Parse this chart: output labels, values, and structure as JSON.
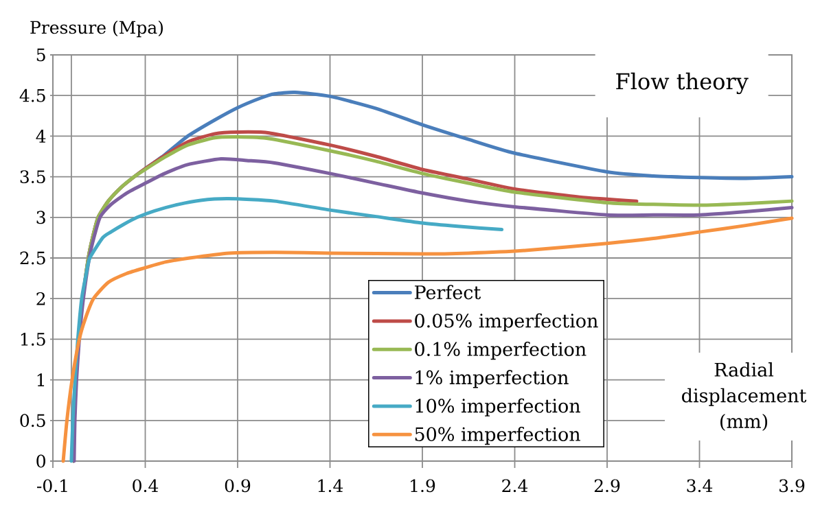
{
  "chart_data": {
    "type": "line",
    "title": "Flow theory",
    "xlabel": "Radial displacement (mm)",
    "ylabel": "Pressure (Mpa)",
    "xlim": [
      -0.1,
      3.9
    ],
    "ylim": [
      0,
      5
    ],
    "xticks": [
      -0.1,
      0.4,
      0.9,
      1.4,
      1.9,
      2.4,
      2.9,
      3.4,
      3.9
    ],
    "yticks": [
      0,
      0.5,
      1,
      1.5,
      2,
      2.5,
      3,
      3.5,
      4,
      4.5,
      5
    ],
    "grid": true,
    "legend": "bottom",
    "line_style": "solid",
    "ref_lines": [
      {
        "axis": "x",
        "value": 0,
        "color": "#8c8c8c"
      }
    ],
    "series": [
      {
        "name": "Perfect",
        "color": "#4a7ebb",
        "x": [
          0.012,
          0.016,
          0.025,
          0.04,
          0.062,
          0.092,
          0.115,
          0.145,
          0.2,
          0.27,
          0.34,
          0.4,
          0.505,
          0.63,
          0.777,
          0.9,
          1.026,
          1.1,
          1.21,
          1.4,
          1.65,
          1.9,
          2.15,
          2.4,
          2.9,
          3.15,
          3.4,
          3.65,
          3.9
        ],
        "values": [
          0,
          0.5,
          1,
          1.5,
          2,
          2.5,
          2.75,
          3.0,
          3.2,
          3.37,
          3.5,
          3.6,
          3.77,
          4.0,
          4.2,
          4.35,
          4.47,
          4.52,
          4.54,
          4.49,
          4.34,
          4.14,
          3.96,
          3.79,
          3.56,
          3.51,
          3.49,
          3.48,
          3.5
        ]
      },
      {
        "name": "0.05% imperfection",
        "color": "#be4b48",
        "x": [
          0.012,
          0.016,
          0.025,
          0.04,
          0.062,
          0.092,
          0.115,
          0.145,
          0.2,
          0.27,
          0.34,
          0.4,
          0.505,
          0.63,
          0.777,
          0.9,
          1.07,
          1.4,
          1.65,
          1.9,
          2.15,
          2.4,
          2.75,
          3.06
        ],
        "values": [
          0,
          0.5,
          1,
          1.5,
          2,
          2.5,
          2.75,
          3.0,
          3.2,
          3.37,
          3.5,
          3.6,
          3.76,
          3.93,
          4.03,
          4.05,
          4.04,
          3.89,
          3.75,
          3.59,
          3.47,
          3.35,
          3.25,
          3.2
        ]
      },
      {
        "name": "0.1% imperfection",
        "color": "#98b954",
        "x": [
          0.012,
          0.016,
          0.025,
          0.04,
          0.062,
          0.092,
          0.115,
          0.145,
          0.2,
          0.27,
          0.34,
          0.4,
          0.505,
          0.63,
          0.777,
          0.9,
          1.07,
          1.4,
          1.65,
          1.9,
          2.15,
          2.4,
          2.9,
          3.15,
          3.4,
          3.65,
          3.9
        ],
        "values": [
          0,
          0.5,
          1,
          1.5,
          2,
          2.5,
          2.75,
          3.0,
          3.2,
          3.37,
          3.5,
          3.59,
          3.74,
          3.89,
          3.98,
          3.99,
          3.97,
          3.82,
          3.69,
          3.54,
          3.42,
          3.31,
          3.18,
          3.16,
          3.15,
          3.17,
          3.2
        ]
      },
      {
        "name": "1% imperfection",
        "color": "#7d60a0",
        "x": [
          0.015,
          0.019,
          0.028,
          0.043,
          0.065,
          0.097,
          0.122,
          0.155,
          0.21,
          0.3,
          0.4,
          0.505,
          0.63,
          0.81,
          0.95,
          1.1,
          1.4,
          1.65,
          1.9,
          2.15,
          2.4,
          2.9,
          3.15,
          3.4,
          3.65,
          3.9
        ],
        "values": [
          0,
          0.5,
          1,
          1.5,
          2,
          2.5,
          2.75,
          3.0,
          3.15,
          3.3,
          3.42,
          3.54,
          3.65,
          3.72,
          3.7,
          3.67,
          3.54,
          3.42,
          3.3,
          3.2,
          3.13,
          3.03,
          3.03,
          3.03,
          3.07,
          3.12
        ]
      },
      {
        "name": "10% imperfection",
        "color": "#46aac5",
        "x": [
          0.0,
          0.008,
          0.02,
          0.035,
          0.056,
          0.08,
          0.1,
          0.17,
          0.214,
          0.28,
          0.356,
          0.45,
          0.58,
          0.7,
          0.85,
          1.1,
          1.4,
          1.65,
          1.9,
          2.09,
          2.33
        ],
        "values": [
          0,
          0.5,
          1,
          1.5,
          2,
          2.3,
          2.5,
          2.75,
          2.82,
          2.91,
          3.0,
          3.08,
          3.16,
          3.21,
          3.23,
          3.2,
          3.09,
          3.01,
          2.93,
          2.89,
          2.85
        ]
      },
      {
        "name": "50% imperfection",
        "color": "#f69240",
        "x": [
          -0.044,
          -0.024,
          0.004,
          0.043,
          0.075,
          0.12,
          0.2,
          0.3,
          0.4,
          0.509,
          0.64,
          0.852,
          1.1,
          1.4,
          1.9,
          2.15,
          2.44,
          2.9,
          3.15,
          3.4,
          3.65,
          3.9
        ],
        "values": [
          0,
          0.5,
          1,
          1.5,
          1.75,
          2.0,
          2.2,
          2.31,
          2.38,
          2.45,
          2.5,
          2.56,
          2.57,
          2.56,
          2.55,
          2.56,
          2.59,
          2.68,
          2.74,
          2.82,
          2.9,
          2.99
        ]
      }
    ]
  }
}
